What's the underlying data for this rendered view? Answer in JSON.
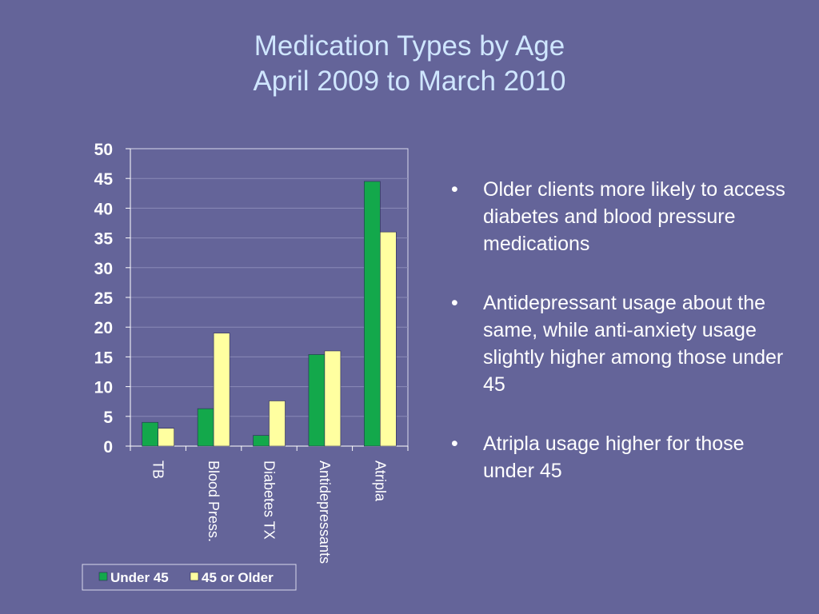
{
  "slide": {
    "title_line1": "Medication Types by Age",
    "title_line2": "April 2009 to March 2010"
  },
  "bullets": [
    "Older clients more likely to access diabetes and blood pressure medications",
    "Antidepressant usage about the same, while anti-anxiety usage slightly higher among those under 45",
    "Atripla usage higher for those under 45"
  ],
  "chart_data": {
    "type": "bar",
    "categories": [
      "TB",
      "Blood Press.",
      "Diabetes TX",
      "Antidepressants",
      "Atripla"
    ],
    "series": [
      {
        "name": "Under 45",
        "values": [
          4,
          6.3,
          1.8,
          15.4,
          44.5
        ],
        "color": "#13a84b"
      },
      {
        "name": "45 or Older",
        "values": [
          3,
          19,
          7.6,
          16,
          36
        ],
        "color": "#ffffa0"
      }
    ],
    "ylim": [
      0,
      50
    ],
    "yticks": [
      "0",
      "5",
      "10",
      "15",
      "20",
      "25",
      "30",
      "35",
      "40",
      "45",
      "50"
    ],
    "grid": true,
    "legend_position": "bottom",
    "plot_background": "#646499",
    "gridline_color": "#8a8ab8"
  }
}
